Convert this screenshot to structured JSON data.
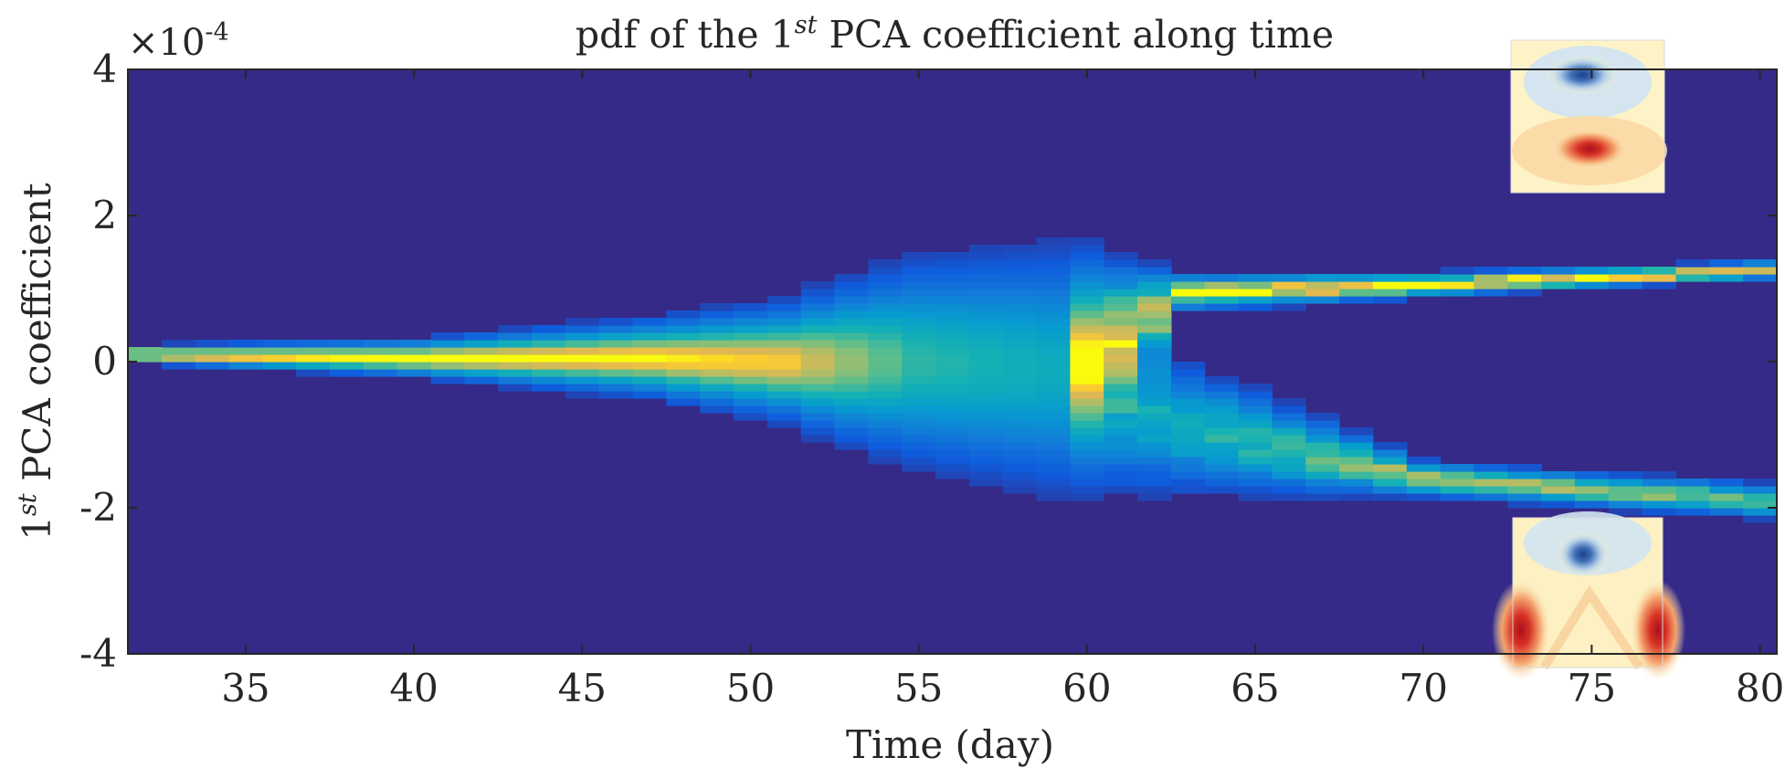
{
  "chart_data": {
    "type": "heatmap",
    "title": {
      "prefix": "pdf of the 1",
      "superscript": "st",
      "suffix": " PCA coefficient along time"
    },
    "xlabel": "Time (day)",
    "ylabel": {
      "prefix": "1",
      "superscript": "st",
      "suffix": " PCA coefficient"
    },
    "xlim": [
      31.5,
      80.5
    ],
    "ylim": [
      -4,
      4
    ],
    "y_scale_factor": {
      "text": "×10",
      "exponent": "-4"
    },
    "x_ticks": [
      35,
      40,
      45,
      50,
      55,
      60,
      65,
      70,
      75,
      80
    ],
    "x_tick_labels": [
      "35",
      "40",
      "45",
      "50",
      "55",
      "60",
      "65",
      "70",
      "75",
      "80"
    ],
    "y_ticks": [
      -4,
      -2,
      0,
      2,
      4
    ],
    "y_tick_labels": [
      "-4",
      "-2",
      "0",
      "2",
      "4"
    ],
    "colormap": "parula",
    "background_color": "#352a87",
    "time_step_days": 1,
    "density_evolution": [
      {
        "time": 32,
        "modes": [
          {
            "center": 0.1,
            "width": 0.06,
            "intensity": 1.0
          }
        ]
      },
      {
        "time": 40,
        "modes": [
          {
            "center": 0.05,
            "width": 0.12,
            "intensity": 1.0
          }
        ]
      },
      {
        "time": 47,
        "modes": [
          {
            "center": 0.05,
            "width": 0.25,
            "intensity": 1.0
          }
        ]
      },
      {
        "time": 51,
        "modes": [
          {
            "center": 0.0,
            "width": 0.38,
            "intensity": 0.95
          }
        ]
      },
      {
        "time": 55,
        "modes": [
          {
            "center": 0.0,
            "width": 0.7,
            "intensity": 0.6
          }
        ]
      },
      {
        "time": 59,
        "modes": [
          {
            "center": -0.1,
            "width": 0.85,
            "intensity": 0.5
          }
        ]
      },
      {
        "time": 63,
        "modes": [
          {
            "center": 0.95,
            "width": 0.12,
            "intensity": 0.95
          },
          {
            "center": -0.9,
            "width": 0.45,
            "intensity": 0.5
          }
        ]
      },
      {
        "time": 70,
        "modes": [
          {
            "center": 1.05,
            "width": 0.08,
            "intensity": 1.0
          },
          {
            "center": -1.6,
            "width": 0.12,
            "intensity": 0.8
          }
        ]
      },
      {
        "time": 80,
        "modes": [
          {
            "center": 1.25,
            "width": 0.06,
            "intensity": 1.0
          },
          {
            "center": -1.9,
            "width": 0.12,
            "intensity": 0.7
          }
        ]
      }
    ],
    "insets": [
      {
        "position": "top-right",
        "description": "PCA mode field with blue vortex above red vortex"
      },
      {
        "position": "bottom-right",
        "description": "PCA mode field with blue vortex and red edges"
      }
    ]
  }
}
